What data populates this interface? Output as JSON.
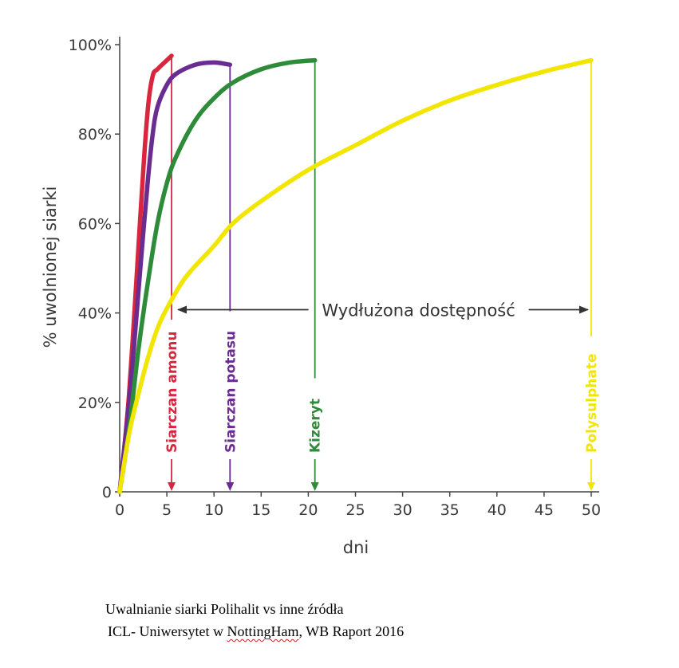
{
  "chart_data": {
    "type": "line",
    "title": "",
    "xlabel": "dni",
    "ylabel": "% uwolnionej siarki",
    "xlim": [
      0,
      50
    ],
    "ylim": [
      0,
      100
    ],
    "x_ticks": [
      0,
      5,
      10,
      15,
      20,
      25,
      30,
      35,
      40,
      45,
      50
    ],
    "x_tick_labels": [
      "0",
      "5",
      "10",
      "15",
      "20",
      "25",
      "30",
      "35",
      "40",
      "45",
      "50"
    ],
    "y_ticks": [
      0,
      20,
      40,
      60,
      80,
      100
    ],
    "y_tick_labels": [
      "0",
      "20%",
      "40%",
      "60%",
      "80%",
      "100%"
    ],
    "grid": false,
    "series": [
      {
        "name": "Siarczan amonu",
        "color": "#d7263d",
        "marker_x": 5.5,
        "points": [
          [
            0,
            0
          ],
          [
            0.5,
            10
          ],
          [
            1,
            22
          ],
          [
            1.5,
            38
          ],
          [
            2,
            55
          ],
          [
            2.5,
            72
          ],
          [
            3,
            86
          ],
          [
            3.5,
            93
          ],
          [
            4,
            94.5
          ],
          [
            5,
            96.5
          ],
          [
            5.5,
            97.5
          ]
        ]
      },
      {
        "name": "Siarczan potasu",
        "color": "#6a2c91",
        "marker_x": 11.7,
        "points": [
          [
            0,
            0
          ],
          [
            0.5,
            10
          ],
          [
            1,
            20
          ],
          [
            1.5,
            32
          ],
          [
            2,
            45
          ],
          [
            2.5,
            58
          ],
          [
            3,
            70
          ],
          [
            3.5,
            80
          ],
          [
            4,
            86
          ],
          [
            5,
            91
          ],
          [
            6,
            93.5
          ],
          [
            8,
            95.5
          ],
          [
            10,
            96
          ],
          [
            11.7,
            95.5
          ]
        ]
      },
      {
        "name": "Kizeryt",
        "color": "#2e8b3a",
        "marker_x": 20.7,
        "points": [
          [
            0,
            0
          ],
          [
            1,
            14
          ],
          [
            2,
            32
          ],
          [
            3,
            47
          ],
          [
            4,
            60
          ],
          [
            5,
            69
          ],
          [
            6,
            75
          ],
          [
            8,
            83
          ],
          [
            10,
            88
          ],
          [
            12,
            91.5
          ],
          [
            15,
            94.5
          ],
          [
            18,
            96
          ],
          [
            20.7,
            96.5
          ]
        ]
      },
      {
        "name": "Polysulphate",
        "color": "#f2e600",
        "marker_x": 50,
        "points": [
          [
            0,
            0
          ],
          [
            1,
            13
          ],
          [
            2,
            22
          ],
          [
            3,
            30
          ],
          [
            4,
            36.5
          ],
          [
            5,
            41
          ],
          [
            7,
            48
          ],
          [
            10,
            55
          ],
          [
            12,
            60
          ],
          [
            15,
            65
          ],
          [
            20,
            72
          ],
          [
            25,
            77.5
          ],
          [
            30,
            83
          ],
          [
            35,
            87.5
          ],
          [
            40,
            91
          ],
          [
            45,
            94
          ],
          [
            50,
            96.5
          ]
        ]
      }
    ],
    "annotations": [
      {
        "text": "Wydłużona dostępność",
        "type": "double-arrow",
        "from_x": 5.5,
        "to_x": 50,
        "y": 50,
        "color": "#333333"
      }
    ]
  },
  "caption": {
    "line1": "Uwalnianie siarki Polihalit vs inne źródła",
    "line2_before": "ICL- Uniwersytet w ",
    "line2_flagged": "NottingHam",
    "line2_after": ", WB Raport 2016"
  }
}
